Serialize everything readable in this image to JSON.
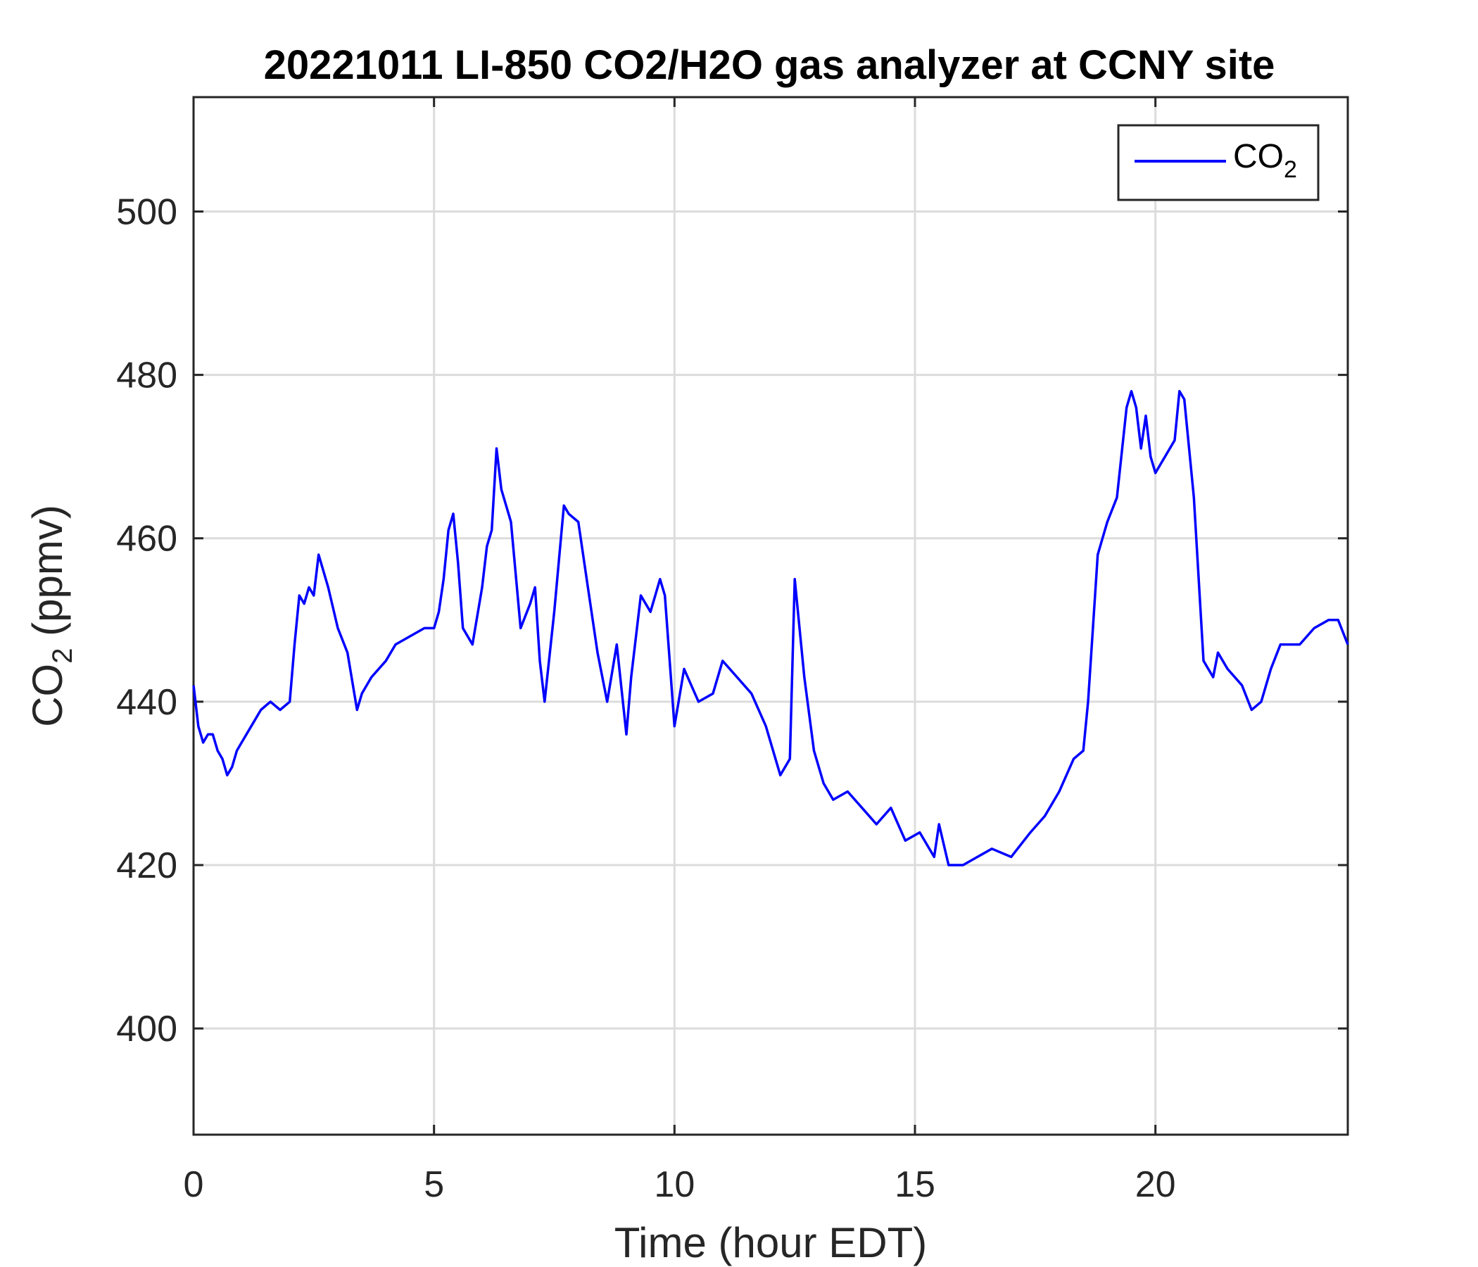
{
  "chart_data": {
    "type": "line",
    "title": "20221011 LI-850 CO2/H2O gas analyzer at CCNY site",
    "xlabel": "Time (hour EDT)",
    "ylabel": {
      "main": "CO",
      "sub": "2",
      "unit": " (ppmv)"
    },
    "xlim": [
      0,
      24
    ],
    "ylim": [
      387,
      514
    ],
    "xticks": [
      0,
      5,
      10,
      15,
      20
    ],
    "yticks": [
      400,
      420,
      440,
      460,
      480,
      500
    ],
    "grid": true,
    "legend": {
      "position": "top-right",
      "label_main": "CO",
      "label_sub": "2"
    },
    "series": [
      {
        "name": "CO2",
        "color": "#0000ff",
        "x": [
          0,
          0.1,
          0.2,
          0.3,
          0.4,
          0.5,
          0.6,
          0.7,
          0.8,
          0.9,
          1.0,
          1.2,
          1.4,
          1.6,
          1.8,
          2.0,
          2.1,
          2.2,
          2.3,
          2.4,
          2.5,
          2.6,
          2.8,
          3.0,
          3.2,
          3.4,
          3.5,
          3.7,
          4.0,
          4.2,
          4.5,
          4.8,
          5.0,
          5.1,
          5.2,
          5.3,
          5.4,
          5.5,
          5.6,
          5.8,
          6.0,
          6.1,
          6.2,
          6.3,
          6.4,
          6.6,
          6.8,
          7.0,
          7.1,
          7.2,
          7.3,
          7.5,
          7.7,
          7.8,
          8.0,
          8.2,
          8.4,
          8.6,
          8.8,
          9.0,
          9.1,
          9.3,
          9.5,
          9.7,
          9.8,
          10.0,
          10.2,
          10.5,
          10.8,
          11.0,
          11.3,
          11.6,
          11.9,
          12.2,
          12.4,
          12.5,
          12.7,
          12.9,
          13.1,
          13.3,
          13.6,
          13.9,
          14.2,
          14.5,
          14.8,
          15.1,
          15.4,
          15.5,
          15.7,
          16.0,
          16.3,
          16.6,
          17.0,
          17.4,
          17.7,
          18.0,
          18.3,
          18.5,
          18.6,
          18.8,
          19.0,
          19.2,
          19.4,
          19.5,
          19.6,
          19.7,
          19.8,
          19.9,
          20.0,
          20.2,
          20.4,
          20.5,
          20.6,
          20.8,
          21.0,
          21.1,
          21.2,
          21.3,
          21.5,
          21.8,
          22.0,
          22.2,
          22.4,
          22.6,
          23.0,
          23.3,
          23.6,
          23.8,
          24.0
        ],
        "values": [
          442,
          437,
          435,
          436,
          436,
          434,
          433,
          431,
          432,
          434,
          435,
          437,
          439,
          440,
          439,
          440,
          447,
          453,
          452,
          454,
          453,
          458,
          454,
          449,
          446,
          439,
          441,
          443,
          445,
          447,
          448,
          449,
          449,
          451,
          455,
          461,
          463,
          457,
          449,
          447,
          454,
          459,
          461,
          471,
          466,
          462,
          449,
          452,
          454,
          445,
          440,
          451,
          464,
          463,
          462,
          454,
          446,
          440,
          447,
          436,
          443,
          453,
          451,
          455,
          453,
          437,
          444,
          440,
          441,
          445,
          443,
          441,
          437,
          431,
          433,
          455,
          443,
          434,
          430,
          428,
          429,
          427,
          425,
          427,
          423,
          424,
          421,
          425,
          420,
          420,
          421,
          422,
          421,
          424,
          426,
          429,
          433,
          434,
          440,
          458,
          462,
          465,
          476,
          478,
          476,
          471,
          475,
          470,
          468,
          470,
          472,
          478,
          477,
          465,
          445,
          444,
          443,
          446,
          444,
          442,
          439,
          440,
          444,
          447,
          447,
          449,
          450,
          450,
          447
        ]
      }
    ]
  }
}
